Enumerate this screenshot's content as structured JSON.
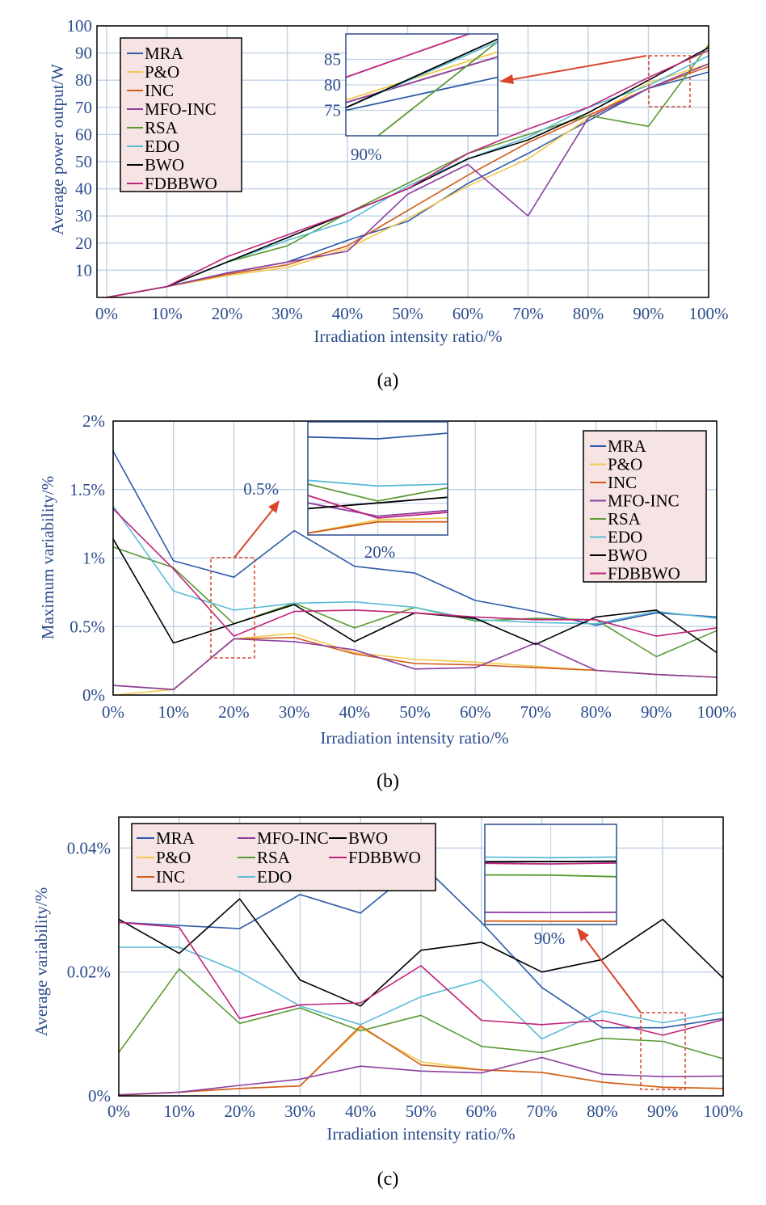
{
  "chart_data": [
    {
      "id": "a",
      "type": "line",
      "panel_label": "(a)",
      "xlabel": "Irradiation intensity ratio/%",
      "ylabel": "Average power output/W",
      "x": [
        0,
        10,
        20,
        30,
        40,
        50,
        60,
        70,
        80,
        90,
        100
      ],
      "xticklabels": [
        "0%",
        "10%",
        "20%",
        "30%",
        "40%",
        "50%",
        "60%",
        "70%",
        "80%",
        "90%",
        "100%"
      ],
      "yticks": [
        10,
        20,
        30,
        40,
        50,
        60,
        70,
        80,
        90,
        100
      ],
      "ylim": [
        0,
        100
      ],
      "series": [
        {
          "name": "MRA",
          "color": "#2e5aa8",
          "values": [
            0,
            4,
            9,
            13,
            21,
            28,
            42,
            53,
            65,
            77,
            83
          ]
        },
        {
          "name": "P&O",
          "color": "#f2c94c",
          "values": [
            0,
            4,
            8,
            11,
            18,
            29,
            41,
            51,
            66,
            79,
            86
          ]
        },
        {
          "name": "INC",
          "color": "#d25c1a",
          "values": [
            0,
            4,
            8.5,
            12,
            19,
            32,
            45,
            57,
            67,
            77,
            85
          ]
        },
        {
          "name": "MFO-INC",
          "color": "#8b3fa0",
          "values": [
            0,
            4,
            9,
            13,
            17,
            38,
            49,
            30,
            66,
            77,
            86
          ]
        },
        {
          "name": "RSA",
          "color": "#5a9a32",
          "values": [
            0,
            4,
            13,
            19,
            31,
            42,
            53,
            60,
            67,
            63,
            93
          ]
        },
        {
          "name": "EDO",
          "color": "#5bbcd6",
          "values": [
            0,
            4,
            13,
            21,
            28,
            41,
            51,
            59,
            70,
            78,
            89
          ]
        },
        {
          "name": "BWO",
          "color": "#000000",
          "values": [
            0,
            4,
            13,
            22,
            31,
            40,
            51,
            58,
            68,
            80,
            92
          ]
        },
        {
          "name": "FDBBWO",
          "color": "#c0237a",
          "values": [
            0,
            4,
            15,
            23,
            31,
            40,
            53,
            62,
            70,
            81,
            91
          ]
        }
      ],
      "legend": "top-left",
      "inset": {
        "label": "90%",
        "yticks": [
          75,
          80,
          85
        ],
        "ylim": [
          70,
          90
        ],
        "values": {
          "MRA": [
            75,
            81.5
          ],
          "P&O": [
            77,
            86.5
          ],
          "INC": [
            76.5,
            85.5
          ],
          "MFO-INC": [
            76.5,
            85.5
          ],
          "RSA": [
            65,
            88.5
          ],
          "EDO": [
            75.5,
            88.5
          ],
          "BWO": [
            75.5,
            89
          ],
          "FDBBWO": [
            81.5,
            92
          ]
        }
      }
    },
    {
      "id": "b",
      "type": "line",
      "panel_label": "(b)",
      "xlabel": "Irradiation intensity ratio/%",
      "ylabel": "Maximum variability/%",
      "x": [
        0,
        10,
        20,
        30,
        40,
        50,
        60,
        70,
        80,
        90,
        100
      ],
      "xticklabels": [
        "0%",
        "10%",
        "20%",
        "30%",
        "40%",
        "50%",
        "60%",
        "70%",
        "80%",
        "90%",
        "100%"
      ],
      "yticks": [
        0,
        0.5,
        1,
        1.5,
        2
      ],
      "yticklabels": [
        "0%",
        "0.5%",
        "1%",
        "1.5%",
        "2%"
      ],
      "ylim": [
        0,
        2
      ],
      "series": [
        {
          "name": "MRA",
          "color": "#2e5aa8",
          "values": [
            1.78,
            0.98,
            0.86,
            1.2,
            0.94,
            0.89,
            0.69,
            0.61,
            0.51,
            0.6,
            0.57
          ]
        },
        {
          "name": "P&O",
          "color": "#f2c94c",
          "values": [
            0.0,
            0.04,
            0.41,
            0.45,
            0.31,
            0.26,
            0.24,
            0.21,
            0.18,
            0.15,
            0.13
          ]
        },
        {
          "name": "INC",
          "color": "#d25c1a",
          "values": [
            0.07,
            0.04,
            0.41,
            0.42,
            0.3,
            0.23,
            0.22,
            0.2,
            0.18,
            0.15,
            0.13
          ]
        },
        {
          "name": "MFO-INC",
          "color": "#8b3fa0",
          "values": [
            0.07,
            0.04,
            0.41,
            0.39,
            0.33,
            0.19,
            0.2,
            0.38,
            0.18,
            0.15,
            0.13
          ]
        },
        {
          "name": "RSA",
          "color": "#5a9a32",
          "values": [
            1.08,
            0.93,
            0.52,
            0.67,
            0.49,
            0.64,
            0.54,
            0.56,
            0.55,
            0.28,
            0.47
          ]
        },
        {
          "name": "EDO",
          "color": "#5bbcd6",
          "values": [
            1.38,
            0.76,
            0.62,
            0.67,
            0.68,
            0.64,
            0.55,
            0.53,
            0.52,
            0.61,
            0.56
          ]
        },
        {
          "name": "BWO",
          "color": "#000000",
          "values": [
            1.14,
            0.38,
            0.52,
            0.66,
            0.39,
            0.6,
            0.56,
            0.37,
            0.57,
            0.62,
            0.31
          ]
        },
        {
          "name": "FDBBWO",
          "color": "#c0237a",
          "values": [
            1.36,
            0.92,
            0.43,
            0.61,
            0.62,
            0.6,
            0.57,
            0.55,
            0.55,
            0.43,
            0.49
          ]
        }
      ],
      "legend": "top-right",
      "inset": {
        "label": "20%",
        "marker": "0.5%",
        "ylim": [
          0.35,
          0.95
        ],
        "values": {
          "MRA": [
            0.87,
            0.86,
            0.89
          ],
          "P&O": [
            0.36,
            0.43,
            0.44
          ],
          "INC": [
            0.36,
            0.42,
            0.42
          ],
          "MFO-INC": [
            0.52,
            0.45,
            0.48
          ],
          "RSA": [
            0.62,
            0.53,
            0.6
          ],
          "EDO": [
            0.64,
            0.61,
            0.62
          ],
          "BWO": [
            0.49,
            0.52,
            0.55
          ],
          "FDBBWO": [
            0.56,
            0.44,
            0.47
          ]
        }
      }
    },
    {
      "id": "c",
      "type": "line",
      "panel_label": "(c)",
      "xlabel": "Irradiation intensity ratio/%",
      "ylabel": "Average variability/%",
      "x": [
        0,
        10,
        20,
        30,
        40,
        50,
        60,
        70,
        80,
        90,
        100
      ],
      "xticklabels": [
        "0%",
        "10%",
        "20%",
        "30%",
        "40%",
        "50%",
        "60%",
        "70%",
        "80%",
        "90%",
        "100%"
      ],
      "yticks": [
        0,
        0.02,
        0.04
      ],
      "yticklabels": [
        "0%",
        "0.02%",
        "0.04%"
      ],
      "ylim": [
        0,
        0.045
      ],
      "series": [
        {
          "name": "MRA",
          "color": "#2e5aa8",
          "values": [
            0.028,
            0.0275,
            0.027,
            0.0325,
            0.0295,
            0.0375,
            0.028,
            0.0175,
            0.011,
            0.011,
            0.0125
          ]
        },
        {
          "name": "P&O",
          "color": "#f2c94c",
          "values": [
            0.0001,
            0.0006,
            0.0012,
            0.0016,
            0.011,
            0.0055,
            0.0042,
            0.0038,
            0.0022,
            0.0014,
            0.0012
          ]
        },
        {
          "name": "INC",
          "color": "#d25c1a",
          "values": [
            0.0001,
            0.0006,
            0.0012,
            0.0016,
            0.0113,
            0.005,
            0.0042,
            0.0038,
            0.0022,
            0.0014,
            0.0012
          ]
        },
        {
          "name": "MFO-INC",
          "color": "#8b3fa0",
          "values": [
            0.0002,
            0.0006,
            0.0017,
            0.0027,
            0.0048,
            0.004,
            0.0037,
            0.0062,
            0.0035,
            0.0031,
            0.0032
          ]
        },
        {
          "name": "RSA",
          "color": "#5a9a32",
          "values": [
            0.007,
            0.0205,
            0.0117,
            0.0142,
            0.0105,
            0.013,
            0.008,
            0.007,
            0.0093,
            0.0088,
            0.006
          ]
        },
        {
          "name": "EDO",
          "color": "#5bbcd6",
          "values": [
            0.024,
            0.024,
            0.02,
            0.0145,
            0.0115,
            0.016,
            0.0187,
            0.0092,
            0.0137,
            0.0118,
            0.0135
          ]
        },
        {
          "name": "BWO",
          "color": "#000000",
          "values": [
            0.0285,
            0.023,
            0.0318,
            0.0187,
            0.0145,
            0.0235,
            0.0248,
            0.02,
            0.022,
            0.0285,
            0.019
          ]
        },
        {
          "name": "FDBBWO",
          "color": "#c0237a",
          "values": [
            0.028,
            0.0272,
            0.0125,
            0.0147,
            0.015,
            0.021,
            0.0122,
            0.0115,
            0.0122,
            0.0098,
            0.0123
          ]
        }
      ],
      "legend": "top-left",
      "inset": {
        "label": "90%",
        "ylim": [
          0,
          0.045
        ],
        "values": {
          "MRA": [
            0.0282,
            0.0283,
            0.0284
          ],
          "P&O": [
            0.0016,
            0.0015,
            0.0015
          ],
          "INC": [
            0.0016,
            0.0015,
            0.0015
          ],
          "MFO-INC": [
            0.0055,
            0.0054,
            0.0055
          ],
          "RSA": [
            0.0223,
            0.0222,
            0.0215
          ],
          "EDO": [
            0.0303,
            0.03,
            0.0303
          ],
          "BWO": [
            0.0282,
            0.0283,
            0.0284
          ],
          "FDBBWO": [
            0.0275,
            0.0272,
            0.0276
          ]
        }
      }
    }
  ]
}
